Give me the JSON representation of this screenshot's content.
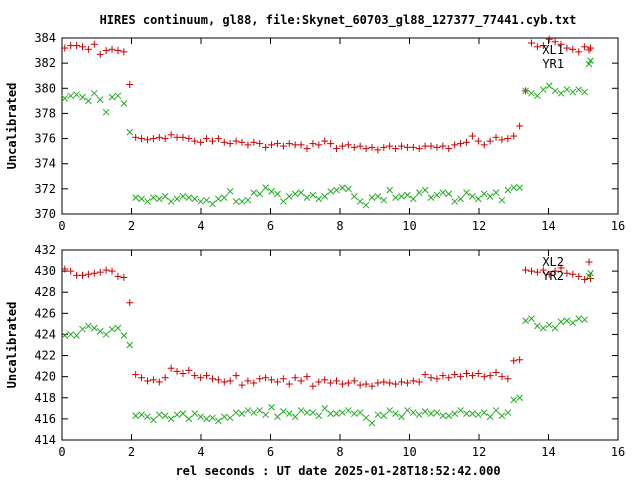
{
  "title": "HIRES continuum, gl88, file:Skynet_60703_gl88_127377_77441.cyb.txt",
  "xlabel": "rel seconds : UT date 2025-01-28T18:52:42.000",
  "colors": {
    "series_red": "#cc0000",
    "series_green": "#22aa22",
    "axis": "#000000"
  },
  "chart_data": [
    {
      "type": "scatter",
      "ylabel": "Uncalibrated",
      "xlim": [
        0,
        16
      ],
      "ylim": [
        370,
        384
      ],
      "xticks": [
        "0",
        "2",
        "4",
        "6",
        "8",
        "10",
        "12",
        "14",
        "16"
      ],
      "yticks": [
        "370",
        "372",
        "374",
        "376",
        "378",
        "380",
        "382",
        "384"
      ],
      "grid": false,
      "legend": "top-right",
      "series": [
        {
          "name": "XL1",
          "marker": "plus",
          "color": "#cc0000",
          "x": [
            0.08,
            0.25,
            0.42,
            0.59,
            0.76,
            0.93,
            1.1,
            1.27,
            1.44,
            1.61,
            1.78,
            1.95,
            2.12,
            2.29,
            2.46,
            2.63,
            2.8,
            2.97,
            3.14,
            3.31,
            3.48,
            3.65,
            3.82,
            3.99,
            4.16,
            4.33,
            4.5,
            4.67,
            4.84,
            5.01,
            5.18,
            5.35,
            5.52,
            5.69,
            5.86,
            6.03,
            6.2,
            6.37,
            6.54,
            6.71,
            6.88,
            7.05,
            7.22,
            7.39,
            7.56,
            7.73,
            7.9,
            8.07,
            8.24,
            8.41,
            8.58,
            8.75,
            8.92,
            9.09,
            9.26,
            9.43,
            9.6,
            9.77,
            9.94,
            10.11,
            10.28,
            10.45,
            10.62,
            10.79,
            10.96,
            11.13,
            11.3,
            11.47,
            11.64,
            11.81,
            11.98,
            12.15,
            12.32,
            12.49,
            12.66,
            12.83,
            13.0,
            13.17,
            13.34,
            13.51,
            13.68,
            13.85,
            14.02,
            14.19,
            14.36,
            14.53,
            14.7,
            14.87,
            15.04,
            15.21
          ],
          "y": [
            383.2,
            383.4,
            383.4,
            383.3,
            383.1,
            383.5,
            382.7,
            383.0,
            383.1,
            383.0,
            382.9,
            380.3,
            376.1,
            376.0,
            375.9,
            376.0,
            376.1,
            376.0,
            376.3,
            376.1,
            376.1,
            376.0,
            375.8,
            375.7,
            376.0,
            375.8,
            376.0,
            375.7,
            375.6,
            375.8,
            375.7,
            375.5,
            375.7,
            375.6,
            375.3,
            375.5,
            375.6,
            375.4,
            375.6,
            375.5,
            375.5,
            375.2,
            375.6,
            375.5,
            375.8,
            375.6,
            375.2,
            375.4,
            375.5,
            375.3,
            375.4,
            375.2,
            375.3,
            375.1,
            375.3,
            375.4,
            375.2,
            375.4,
            375.3,
            375.3,
            375.2,
            375.4,
            375.4,
            375.3,
            375.4,
            375.2,
            375.5,
            375.6,
            375.7,
            376.2,
            375.8,
            375.5,
            375.8,
            376.1,
            375.9,
            376.0,
            376.2,
            377.0,
            379.8,
            383.6,
            383.3,
            383.4,
            383.9,
            383.7,
            383.5,
            383.2,
            383.1,
            382.9,
            383.3,
            383.2
          ]
        },
        {
          "name": "YR1",
          "marker": "cross",
          "color": "#22aa22",
          "x": [
            0.08,
            0.25,
            0.42,
            0.59,
            0.76,
            0.93,
            1.1,
            1.27,
            1.44,
            1.61,
            1.78,
            1.95,
            2.12,
            2.29,
            2.46,
            2.63,
            2.8,
            2.97,
            3.14,
            3.31,
            3.48,
            3.65,
            3.82,
            3.99,
            4.16,
            4.33,
            4.5,
            4.67,
            4.84,
            5.01,
            5.18,
            5.35,
            5.52,
            5.69,
            5.86,
            6.03,
            6.2,
            6.37,
            6.54,
            6.71,
            6.88,
            7.05,
            7.22,
            7.39,
            7.56,
            7.73,
            7.9,
            8.07,
            8.24,
            8.41,
            8.58,
            8.75,
            8.92,
            9.09,
            9.26,
            9.43,
            9.6,
            9.77,
            9.94,
            10.11,
            10.28,
            10.45,
            10.62,
            10.79,
            10.96,
            11.13,
            11.3,
            11.47,
            11.64,
            11.81,
            11.98,
            12.15,
            12.32,
            12.49,
            12.66,
            12.83,
            13.0,
            13.17,
            13.34,
            13.51,
            13.68,
            13.85,
            14.02,
            14.19,
            14.36,
            14.53,
            14.7,
            14.87,
            15.04,
            15.21
          ],
          "y": [
            379.2,
            379.4,
            379.5,
            379.3,
            379.0,
            379.6,
            379.1,
            378.1,
            379.3,
            379.4,
            378.8,
            376.5,
            371.3,
            371.2,
            371.0,
            371.3,
            371.2,
            371.4,
            371.0,
            371.2,
            371.4,
            371.3,
            371.2,
            371.0,
            371.1,
            370.8,
            371.2,
            371.3,
            371.8,
            371.0,
            371.0,
            371.1,
            371.7,
            371.6,
            372.1,
            371.8,
            371.6,
            371.0,
            371.4,
            371.6,
            371.7,
            371.3,
            371.5,
            371.2,
            371.4,
            371.8,
            371.9,
            372.1,
            372.0,
            371.4,
            371.0,
            370.7,
            371.3,
            371.4,
            371.1,
            371.9,
            371.3,
            371.4,
            371.5,
            371.2,
            371.7,
            371.9,
            371.3,
            371.5,
            371.7,
            371.6,
            371.0,
            371.2,
            371.7,
            371.4,
            371.2,
            371.6,
            371.4,
            371.7,
            371.1,
            371.9,
            372.1,
            372.1,
            379.8,
            379.6,
            379.4,
            379.9,
            380.2,
            379.8,
            379.6,
            379.9,
            379.7,
            379.9,
            379.7,
            382.2
          ]
        }
      ]
    },
    {
      "type": "scatter",
      "ylabel": "Uncalibrated",
      "xlim": [
        0,
        16
      ],
      "ylim": [
        414,
        432
      ],
      "xticks": [
        "0",
        "2",
        "4",
        "6",
        "8",
        "10",
        "12",
        "14",
        "16"
      ],
      "yticks": [
        "414",
        "416",
        "418",
        "420",
        "422",
        "424",
        "426",
        "428",
        "430",
        "432"
      ],
      "grid": false,
      "legend": "top-right",
      "series": [
        {
          "name": "XL2",
          "marker": "plus",
          "color": "#cc0000",
          "x": [
            0.08,
            0.25,
            0.42,
            0.59,
            0.76,
            0.93,
            1.1,
            1.27,
            1.44,
            1.61,
            1.78,
            1.95,
            2.12,
            2.29,
            2.46,
            2.63,
            2.8,
            2.97,
            3.14,
            3.31,
            3.48,
            3.65,
            3.82,
            3.99,
            4.16,
            4.33,
            4.5,
            4.67,
            4.84,
            5.01,
            5.18,
            5.35,
            5.52,
            5.69,
            5.86,
            6.03,
            6.2,
            6.37,
            6.54,
            6.71,
            6.88,
            7.05,
            7.22,
            7.39,
            7.56,
            7.73,
            7.9,
            8.07,
            8.24,
            8.41,
            8.58,
            8.75,
            8.92,
            9.09,
            9.26,
            9.43,
            9.6,
            9.77,
            9.94,
            10.11,
            10.28,
            10.45,
            10.62,
            10.79,
            10.96,
            11.13,
            11.3,
            11.47,
            11.64,
            11.81,
            11.98,
            12.15,
            12.32,
            12.49,
            12.66,
            12.83,
            13.0,
            13.17,
            13.34,
            13.51,
            13.68,
            13.85,
            14.02,
            14.19,
            14.36,
            14.53,
            14.7,
            14.87,
            15.04,
            15.21
          ],
          "y": [
            430.2,
            430.0,
            429.6,
            429.6,
            429.7,
            429.8,
            429.9,
            430.1,
            430.0,
            429.5,
            429.4,
            427.0,
            420.2,
            419.9,
            419.6,
            419.7,
            419.5,
            419.9,
            420.8,
            420.5,
            420.3,
            420.6,
            420.1,
            419.9,
            420.1,
            419.8,
            419.7,
            419.5,
            419.6,
            420.1,
            419.2,
            419.6,
            419.4,
            419.8,
            419.9,
            419.7,
            419.5,
            419.8,
            419.3,
            419.9,
            419.6,
            420.0,
            419.1,
            419.5,
            419.7,
            419.4,
            419.6,
            419.3,
            419.4,
            419.6,
            419.2,
            419.3,
            419.1,
            419.4,
            419.5,
            419.4,
            419.3,
            419.5,
            419.4,
            419.6,
            419.5,
            420.2,
            419.9,
            419.8,
            420.1,
            419.9,
            420.2,
            420.0,
            420.3,
            420.1,
            420.3,
            420.0,
            420.1,
            420.4,
            420.0,
            419.8,
            421.5,
            421.6,
            430.1,
            430.0,
            429.9,
            430.1,
            429.7,
            430.0,
            430.3,
            429.8,
            429.7,
            429.5,
            429.2,
            429.3
          ]
        },
        {
          "name": "YR2",
          "marker": "cross",
          "color": "#22aa22",
          "x": [
            0.08,
            0.25,
            0.42,
            0.59,
            0.76,
            0.93,
            1.1,
            1.27,
            1.44,
            1.61,
            1.78,
            1.95,
            2.12,
            2.29,
            2.46,
            2.63,
            2.8,
            2.97,
            3.14,
            3.31,
            3.48,
            3.65,
            3.82,
            3.99,
            4.16,
            4.33,
            4.5,
            4.67,
            4.84,
            5.01,
            5.18,
            5.35,
            5.52,
            5.69,
            5.86,
            6.03,
            6.2,
            6.37,
            6.54,
            6.71,
            6.88,
            7.05,
            7.22,
            7.39,
            7.56,
            7.73,
            7.9,
            8.07,
            8.24,
            8.41,
            8.58,
            8.75,
            8.92,
            9.09,
            9.26,
            9.43,
            9.6,
            9.77,
            9.94,
            10.11,
            10.28,
            10.45,
            10.62,
            10.79,
            10.96,
            11.13,
            11.3,
            11.47,
            11.64,
            11.81,
            11.98,
            12.15,
            12.32,
            12.49,
            12.66,
            12.83,
            13.0,
            13.17,
            13.34,
            13.51,
            13.68,
            13.85,
            14.02,
            14.19,
            14.36,
            14.53,
            14.7,
            14.87,
            15.04,
            15.21
          ],
          "y": [
            423.9,
            424.0,
            423.9,
            424.5,
            424.8,
            424.6,
            424.3,
            424.0,
            424.5,
            424.6,
            423.9,
            423.0,
            416.3,
            416.4,
            416.2,
            415.9,
            416.4,
            416.3,
            416.0,
            416.4,
            416.5,
            416.0,
            416.5,
            416.2,
            416.0,
            416.1,
            415.8,
            416.2,
            416.1,
            416.6,
            416.5,
            416.8,
            416.6,
            416.8,
            416.4,
            417.1,
            416.2,
            416.7,
            416.5,
            416.2,
            416.8,
            416.6,
            416.6,
            416.3,
            417.0,
            416.5,
            416.5,
            416.6,
            416.8,
            416.5,
            416.6,
            416.1,
            415.6,
            416.4,
            416.3,
            416.8,
            416.5,
            416.2,
            416.8,
            416.6,
            416.4,
            416.7,
            416.5,
            416.6,
            416.3,
            416.3,
            416.5,
            416.8,
            416.5,
            416.5,
            416.4,
            416.6,
            416.2,
            416.8,
            416.3,
            416.6,
            417.8,
            418.0,
            425.3,
            425.5,
            424.8,
            424.6,
            424.9,
            424.6,
            425.2,
            425.3,
            425.1,
            425.5,
            425.4,
            429.8
          ]
        }
      ]
    }
  ]
}
